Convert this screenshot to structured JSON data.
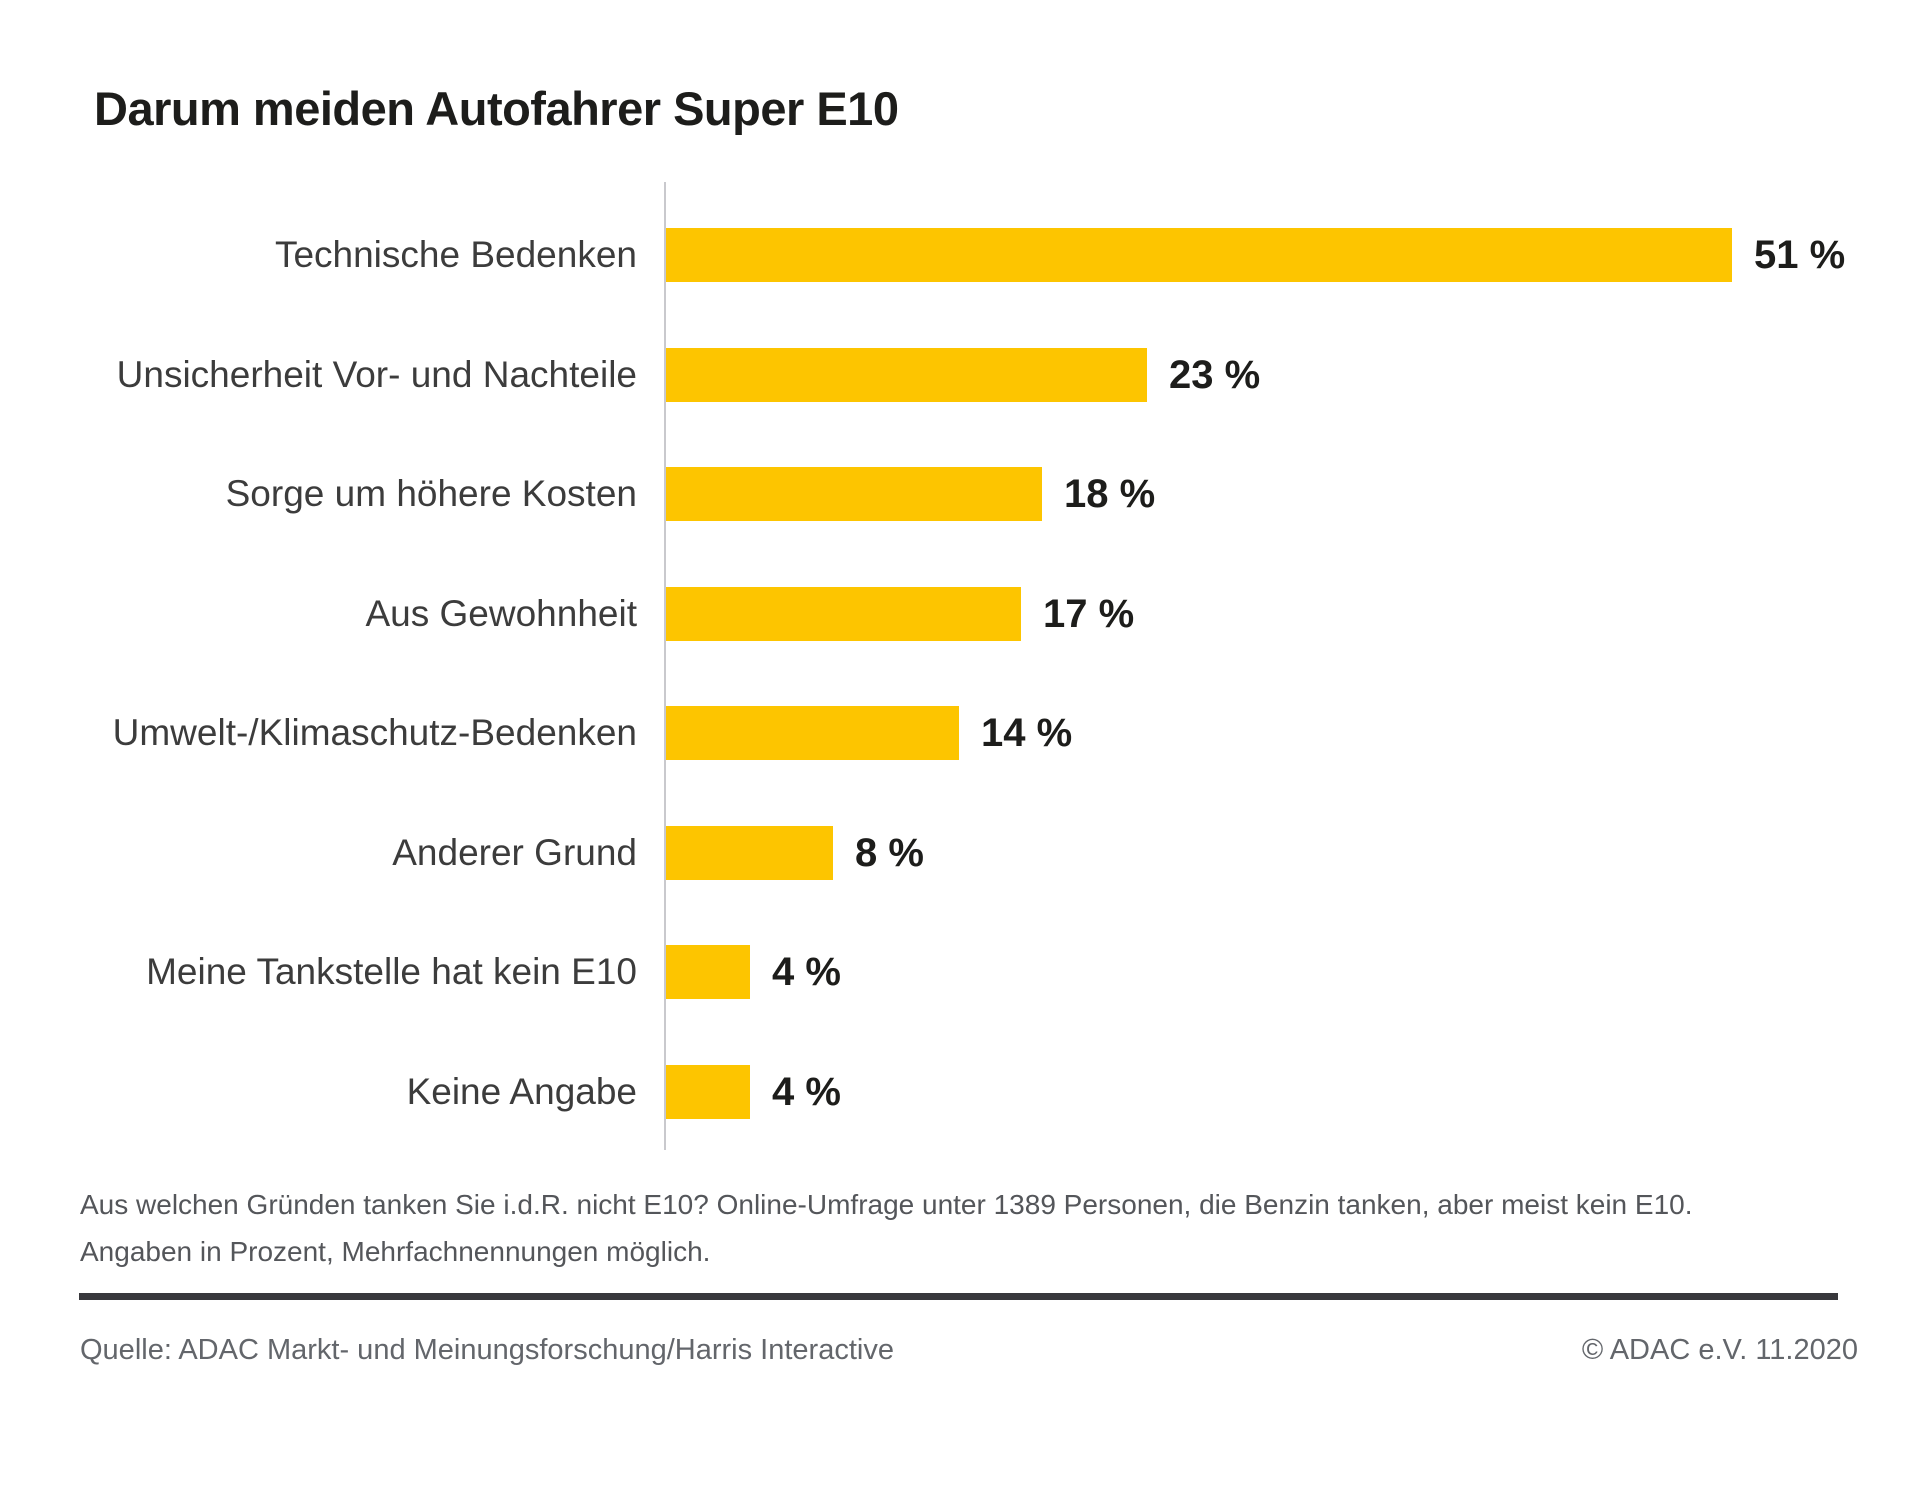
{
  "page": {
    "background": "#FFFFFF"
  },
  "title": "Darum meiden Autofahrer Super E10",
  "chart_data": {
    "type": "bar",
    "orientation": "horizontal",
    "title": "Darum meiden Autofahrer Super E10",
    "xlabel": "",
    "ylabel": "",
    "unit": "percent",
    "xlim": [
      0,
      55
    ],
    "grid": false,
    "legend": false,
    "categories": [
      "Technische Bedenken",
      "Unsicherheit Vor- und Nachteile",
      "Sorge um höhere Kosten",
      "Aus Gewohnheit",
      "Umwelt-/Klimaschutz-Bedenken",
      "Anderer Grund",
      "Meine Tankstelle hat kein E10",
      "Keine Angabe"
    ],
    "values": [
      51,
      23,
      18,
      17,
      14,
      8,
      4,
      4
    ],
    "value_labels": [
      "51 %",
      "23 %",
      "18 %",
      "17 %",
      "14 %",
      "8 %",
      "4 %",
      "4 %"
    ],
    "bar_color": "#FDC500",
    "axis_color": "#C9C9CD",
    "category_label_color": "#3C3C3C",
    "value_label_color": "#1D1D1B"
  },
  "footnote": {
    "line1": "Aus welchen Gründen tanken Sie i.d.R. nicht E10? Online-Umfrage unter 1389 Personen, die Benzin tanken, aber meist kein E10.",
    "line2": "Angaben in Prozent, Mehrfachnennungen möglich."
  },
  "source": {
    "quelle": "Quelle: ADAC Markt- und Meinungsforschung/Harris Interactive",
    "copyright": "© ADAC e.V. 11.2020"
  }
}
